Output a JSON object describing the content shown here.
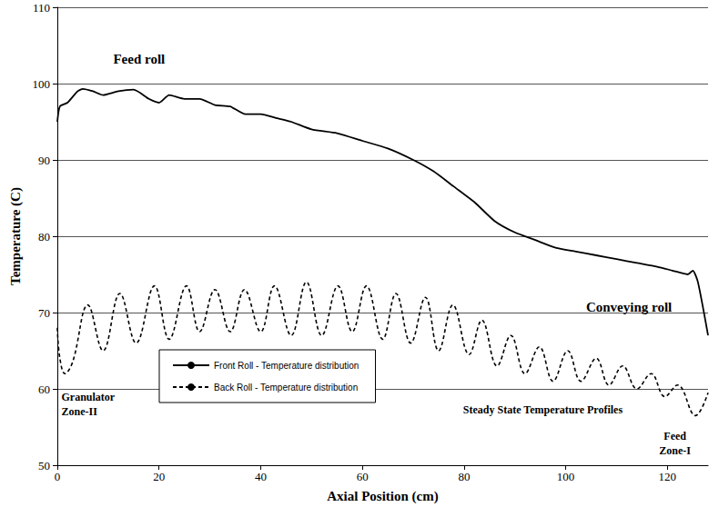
{
  "chart_data": {
    "type": "line",
    "x_label": "Axial Position (cm)",
    "y_label": "Temperature (C)",
    "xlim": [
      0,
      128
    ],
    "xticks": [
      0,
      20,
      40,
      60,
      80,
      100,
      120
    ],
    "ylim": [
      50,
      110
    ],
    "yticks": [
      50,
      60,
      70,
      80,
      90,
      100,
      110
    ],
    "grid": true,
    "legend": "lower left",
    "annotations": [
      "Feed roll",
      "Conveying roll",
      "Granulator\nZone-II",
      "Steady State Temperature Profiles",
      "Feed\nZone-I"
    ],
    "series": [
      {
        "name": "Front Roll - Temperature distribution",
        "color": "#000000",
        "line_style": "solid",
        "x": [
          0,
          0.5,
          2,
          4,
          5,
          7,
          9,
          12,
          15,
          18,
          20,
          22,
          25,
          28,
          31,
          34,
          37,
          40,
          43,
          46,
          50,
          55,
          60,
          65,
          70,
          74,
          78,
          82,
          86,
          90,
          94,
          98,
          102,
          106,
          110,
          114,
          118,
          121,
          124,
          125,
          126,
          128
        ],
        "values": [
          95,
          97,
          97.5,
          99,
          99.3,
          99,
          98.5,
          99,
          99.2,
          98,
          97.5,
          98.5,
          98,
          98,
          97.2,
          97,
          96,
          96,
          95.5,
          95,
          94,
          93.5,
          92.5,
          91.5,
          90,
          88.5,
          86.5,
          84.5,
          82,
          80.5,
          79.5,
          78.5,
          78,
          77.5,
          77,
          76.5,
          76,
          75.5,
          75,
          75.5,
          74,
          67
        ]
      },
      {
        "name": "Back Roll - Temperature distribution",
        "color": "#000000",
        "line_style": "dashed",
        "x": [
          0,
          0.5,
          1.5,
          3,
          6,
          9,
          12.3,
          15.5,
          19.1,
          22,
          25.4,
          28,
          31,
          34,
          36.8,
          40,
          42.7,
          46,
          49,
          52,
          55.2,
          58,
          60.8,
          64,
          66.6,
          69.5,
          72.4,
          75,
          77.8,
          81,
          83.5,
          86.5,
          89.2,
          92,
          94.8,
          97.5,
          100.4,
          103,
          106,
          108.5,
          111.2,
          114,
          116.8,
          119.5,
          122,
          125.5,
          128
        ],
        "values": [
          68,
          64,
          62,
          63.5,
          71,
          65,
          72.5,
          66,
          73.5,
          66.5,
          73.5,
          67.5,
          73,
          67.5,
          73,
          67.5,
          73.5,
          67,
          74,
          67,
          73.5,
          67.5,
          73.5,
          66.5,
          72.5,
          66,
          72,
          65,
          71,
          64.5,
          69,
          63,
          67,
          62,
          65.5,
          61,
          65,
          61,
          64,
          60.5,
          63,
          60,
          62,
          59,
          60.5,
          56.5,
          59.5
        ]
      }
    ]
  }
}
